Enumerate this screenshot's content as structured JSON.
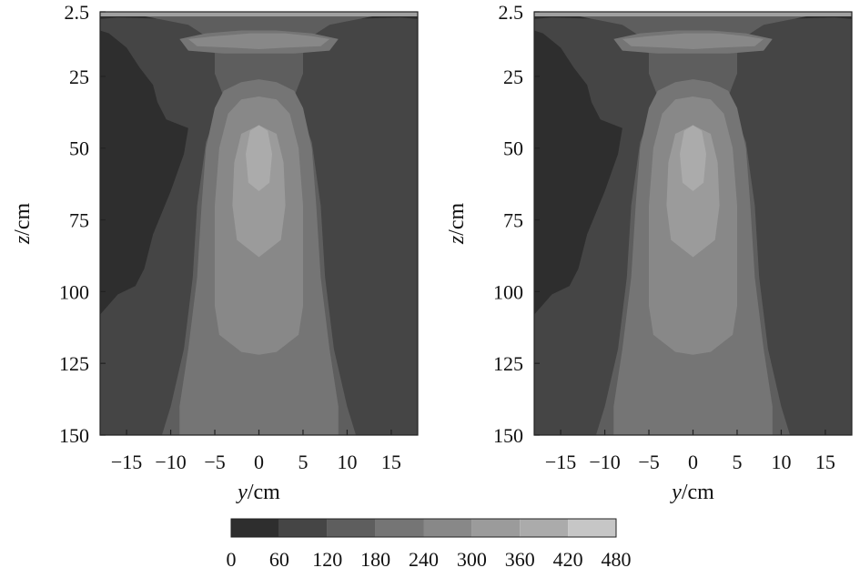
{
  "chart_data": {
    "type": "heatmap",
    "colorbar": {
      "ticks": [
        "0",
        "60",
        "120",
        "180",
        "240",
        "300",
        "360",
        "420",
        "480"
      ],
      "levels": [
        0,
        60,
        120,
        180,
        240,
        300,
        360,
        420,
        480
      ],
      "colors": [
        "#2e2e2e",
        "#454545",
        "#5e5e5e",
        "#757575",
        "#888888",
        "#9b9b9b",
        "#ababab",
        "#c6c6c6"
      ]
    },
    "panels": [
      {
        "xlabel_var": "y",
        "xlabel_unit": "/cm",
        "ylabel_var": "z",
        "ylabel_unit": "/cm",
        "xlim": [
          -18,
          18
        ],
        "ylim": [
          150,
          2.5
        ],
        "xticks": [
          -15,
          -10,
          -5,
          0,
          5,
          10,
          15
        ],
        "xtick_labels": [
          "−15",
          "−10",
          "−5",
          "0",
          "5",
          "10",
          "15"
        ],
        "yticks": [
          2.5,
          25,
          50,
          75,
          100,
          125,
          150
        ],
        "ytick_labels": [
          "2.5",
          "25",
          "50",
          "75",
          "100",
          "125",
          "150"
        ]
      },
      {
        "xlabel_var": "y",
        "xlabel_unit": "/cm",
        "ylabel_var": "z",
        "ylabel_unit": "/cm",
        "xlim": [
          -18,
          18
        ],
        "ylim": [
          150,
          2.5
        ],
        "xticks": [
          -15,
          -10,
          -5,
          0,
          5,
          10,
          15
        ],
        "xtick_labels": [
          "−15",
          "−10",
          "−5",
          "0",
          "5",
          "10",
          "15"
        ],
        "yticks": [
          2.5,
          25,
          50,
          75,
          100,
          125,
          150
        ],
        "ytick_labels": [
          "2.5",
          "25",
          "50",
          "75",
          "100",
          "125",
          "150"
        ]
      }
    ],
    "contours": [
      {
        "level": 0,
        "points": [
          [
            -18,
            2.5
          ],
          [
            18,
            2.5
          ],
          [
            18,
            150
          ],
          [
            -18,
            150
          ]
        ]
      },
      {
        "level": 60,
        "points": [
          [
            -18,
            5
          ],
          [
            -16,
            4.5
          ],
          [
            -10,
            5
          ],
          [
            -5,
            4
          ],
          [
            0,
            4
          ],
          [
            5,
            4
          ],
          [
            10,
            5
          ],
          [
            16,
            4.5
          ],
          [
            18,
            5
          ],
          [
            18,
            100
          ],
          [
            16,
            101
          ],
          [
            14,
            98
          ],
          [
            13,
            92
          ],
          [
            12,
            80
          ],
          [
            10,
            65
          ],
          [
            8.5,
            52
          ],
          [
            8,
            43
          ],
          [
            10.5,
            40
          ],
          [
            11.5,
            34
          ],
          [
            12,
            28
          ],
          [
            13.5,
            22
          ],
          [
            15,
            15
          ],
          [
            17,
            10
          ],
          [
            18,
            9
          ],
          [
            18,
            150
          ],
          [
            -18,
            150
          ],
          [
            -18,
            108
          ],
          [
            -16,
            101
          ],
          [
            -14,
            98
          ],
          [
            -13,
            92
          ],
          [
            -12,
            80
          ],
          [
            -10,
            65
          ],
          [
            -8.5,
            52
          ],
          [
            -8,
            43
          ],
          [
            -10.5,
            40
          ],
          [
            -11.5,
            34
          ],
          [
            -12,
            28
          ],
          [
            -13.5,
            22
          ],
          [
            -15,
            15
          ],
          [
            -17,
            10
          ],
          [
            -18,
            9
          ]
        ]
      },
      {
        "level": 120,
        "points": [
          [
            -13,
            4
          ],
          [
            -8,
            7
          ],
          [
            -6,
            11
          ],
          [
            -5,
            17
          ],
          [
            -5,
            24
          ],
          [
            -4,
            32
          ],
          [
            -6,
            48
          ],
          [
            -7,
            70
          ],
          [
            -7.5,
            95
          ],
          [
            -8.5,
            120
          ],
          [
            -10,
            140
          ],
          [
            -11,
            150
          ],
          [
            11,
            150
          ],
          [
            10,
            140
          ],
          [
            8.5,
            120
          ],
          [
            7.5,
            95
          ],
          [
            7,
            70
          ],
          [
            6,
            48
          ],
          [
            4,
            32
          ],
          [
            5,
            24
          ],
          [
            5,
            17
          ],
          [
            6,
            11
          ],
          [
            8,
            7
          ],
          [
            13,
            4
          ]
        ]
      },
      {
        "level": 180,
        "points": [
          [
            -5,
            36
          ],
          [
            -4,
            30
          ],
          [
            -2,
            27
          ],
          [
            0,
            26
          ],
          [
            2,
            27
          ],
          [
            4,
            30
          ],
          [
            5,
            36
          ],
          [
            6,
            50
          ],
          [
            6.5,
            70
          ],
          [
            7,
            95
          ],
          [
            8,
            120
          ],
          [
            9,
            140
          ],
          [
            9,
            150
          ],
          [
            -9,
            150
          ],
          [
            -9,
            140
          ],
          [
            -8,
            120
          ],
          [
            -7,
            95
          ],
          [
            -6.5,
            70
          ],
          [
            -6,
            50
          ]
        ]
      },
      {
        "level": 180,
        "points": [
          [
            -9,
            12
          ],
          [
            -6,
            10
          ],
          [
            -2,
            9
          ],
          [
            2,
            9
          ],
          [
            6,
            10
          ],
          [
            9,
            12
          ],
          [
            8,
            16
          ],
          [
            4,
            17
          ],
          [
            0,
            17
          ],
          [
            -4,
            17
          ],
          [
            -8,
            16
          ]
        ]
      },
      {
        "level": 240,
        "points": [
          [
            -3.5,
            38
          ],
          [
            -2,
            33
          ],
          [
            0,
            32
          ],
          [
            2,
            33
          ],
          [
            3.5,
            38
          ],
          [
            4.5,
            50
          ],
          [
            5,
            70
          ],
          [
            5,
            90
          ],
          [
            5,
            105
          ],
          [
            4.5,
            115
          ],
          [
            2,
            121
          ],
          [
            0,
            122
          ],
          [
            -2,
            121
          ],
          [
            -4.5,
            115
          ],
          [
            -5,
            105
          ],
          [
            -5,
            90
          ],
          [
            -5,
            70
          ],
          [
            -4.5,
            50
          ]
        ]
      },
      {
        "level": 240,
        "points": [
          [
            -8,
            12
          ],
          [
            -5,
            11
          ],
          [
            -1,
            10
          ],
          [
            3,
            10
          ],
          [
            6,
            11
          ],
          [
            8,
            12
          ],
          [
            7,
            14.5
          ],
          [
            3,
            15
          ],
          [
            0,
            15.5
          ],
          [
            -3,
            15
          ],
          [
            -7,
            14.5
          ]
        ]
      },
      {
        "level": 300,
        "points": [
          [
            -2,
            45
          ],
          [
            0,
            42
          ],
          [
            2,
            45
          ],
          [
            2.8,
            55
          ],
          [
            3,
            70
          ],
          [
            2.5,
            82
          ],
          [
            0,
            88
          ],
          [
            -2.5,
            82
          ],
          [
            -3,
            70
          ],
          [
            -2.8,
            55
          ]
        ]
      },
      {
        "level": 360,
        "points": [
          [
            -1,
            44
          ],
          [
            0,
            42
          ],
          [
            1,
            44
          ],
          [
            1.5,
            52
          ],
          [
            1.2,
            62
          ],
          [
            0,
            65
          ],
          [
            -1.2,
            62
          ],
          [
            -1.5,
            52
          ]
        ]
      }
    ]
  }
}
